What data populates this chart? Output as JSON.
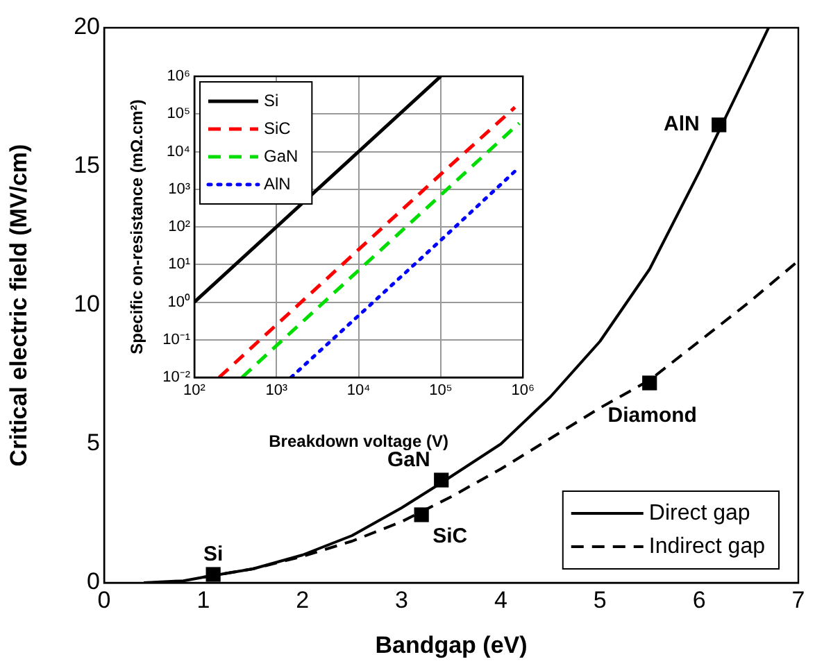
{
  "chart_data": [
    {
      "type": "line",
      "xlabel": "Bandgap (eV)",
      "ylabel": "Critical electric field (MV/cm)",
      "xlim": [
        0,
        7
      ],
      "ylim": [
        0,
        20
      ],
      "xticks": [
        0,
        1,
        2,
        3,
        4,
        5,
        6,
        7
      ],
      "yticks": [
        0,
        5,
        10,
        15,
        20
      ],
      "legend": "bottom right",
      "series": [
        {
          "name": "Direct gap",
          "color": "#000000",
          "line_style": "solid",
          "marker": "none",
          "x": [
            0.4,
            0.8,
            1,
            1.5,
            2,
            2.5,
            3,
            3.4,
            4,
            4.5,
            5,
            5.5,
            6,
            6.5,
            6.7
          ],
          "values": [
            0,
            0.07,
            0.2,
            0.5,
            1,
            1.7,
            2.7,
            3.6,
            5,
            6.7,
            8.7,
            11.3,
            14.8,
            18.5,
            20
          ]
        },
        {
          "name": "Indirect gap",
          "color": "#000000",
          "line_style": "dashed",
          "marker": "none",
          "x": [
            1,
            1.5,
            2,
            2.5,
            3,
            3.5,
            4,
            4.5,
            5,
            5.5,
            6,
            6.5,
            7
          ],
          "values": [
            0.2,
            0.5,
            0.95,
            1.5,
            2.2,
            3.1,
            4.1,
            5.2,
            6.3,
            7.3,
            8.7,
            10.1,
            11.6
          ]
        },
        {
          "type": "scatter",
          "color": "#000000",
          "marker": "square",
          "x": [
            1.1,
            3.4,
            3.2,
            5.5,
            6.2
          ],
          "values": [
            0.3,
            3.7,
            2.45,
            7.2,
            16.5
          ]
        }
      ],
      "annotations": [
        {
          "text": "Si",
          "x": 1.1,
          "y": 0.3
        },
        {
          "text": "GaN",
          "x": 3.4,
          "y": 3.7
        },
        {
          "text": "SiC",
          "x": 3.2,
          "y": 2.45
        },
        {
          "text": "Diamond",
          "x": 5.5,
          "y": 7.2
        },
        {
          "text": "AlN",
          "x": 6.2,
          "y": 16.5
        }
      ]
    },
    {
      "type": "line",
      "xlabel": "Breakdown voltage (V)",
      "ylabel": "Specific on-resistance (mΩ.cm²)",
      "log": "xy",
      "grid": true,
      "legend": "top left",
      "xlim": [
        100,
        1000000
      ],
      "ylim": [
        0.01,
        1000000
      ],
      "xticks": [
        {
          "value": 100,
          "label": "10²"
        },
        {
          "value": 1000,
          "label": "10³"
        },
        {
          "value": 10000,
          "label": "10⁴"
        },
        {
          "value": 100000,
          "label": "10⁵"
        },
        {
          "value": 1000000,
          "label": "10⁶"
        }
      ],
      "yticks": [
        {
          "value": 0.01,
          "label": "10⁻²"
        },
        {
          "value": 0.1,
          "label": "10⁻¹"
        },
        {
          "value": 1,
          "label": "10⁰"
        },
        {
          "value": 10,
          "label": "10¹"
        },
        {
          "value": 100,
          "label": "10²"
        },
        {
          "value": 1000,
          "label": "10³"
        },
        {
          "value": 10000,
          "label": "10⁴"
        },
        {
          "value": 100000,
          "label": "10⁵"
        },
        {
          "value": 1000000,
          "label": "10⁶"
        }
      ],
      "series": [
        {
          "name": "Si",
          "color": "#000000",
          "line_style": "solid",
          "x": [
            100,
            1000,
            10000,
            100000
          ],
          "values": [
            1,
            100,
            10000,
            1000000
          ]
        },
        {
          "name": "SiC",
          "color": "#ff0000",
          "line_style": "dashed",
          "x": [
            200,
            1000,
            10000,
            100000,
            800000
          ],
          "values": [
            0.01,
            0.25,
            25,
            2500,
            150000
          ]
        },
        {
          "name": "GaN",
          "color": "#00dd00",
          "line_style": "dashed",
          "x": [
            380,
            1000,
            10000,
            100000,
            900000
          ],
          "values": [
            0.01,
            0.07,
            7,
            700,
            57000
          ]
        },
        {
          "name": "AlN",
          "color": "#0000ff",
          "line_style": "dotted",
          "x": [
            1500,
            10000,
            100000,
            800000
          ],
          "values": [
            0.01,
            0.44,
            44,
            3000
          ]
        }
      ]
    }
  ]
}
